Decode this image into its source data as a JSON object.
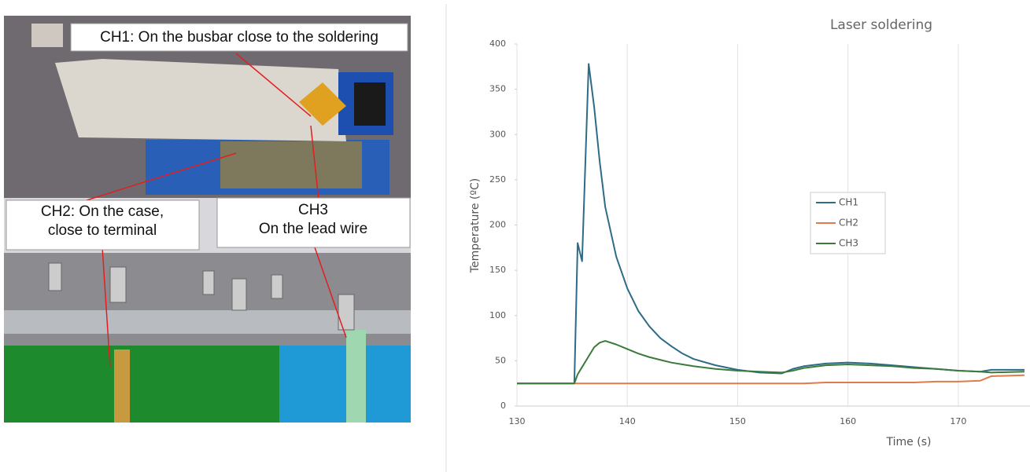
{
  "photo": {
    "labels": [
      {
        "lines": [
          "CH1: On the busbar close to the soldering"
        ]
      },
      {
        "lines": [
          "CH2: On the case,",
          "close to terminal"
        ]
      },
      {
        "lines": [
          "CH3",
          "On the lead wire"
        ]
      }
    ]
  },
  "chart_data": {
    "type": "line",
    "title": "Laser soldering",
    "x_label": "Time (s)",
    "y_label": "Temperature (ºC)",
    "x": [
      130,
      135,
      135.2,
      135.5,
      135.9,
      136.5,
      137,
      137.5,
      138,
      139,
      140,
      141,
      142,
      143,
      144,
      145,
      146,
      148,
      150,
      152,
      154,
      155,
      156,
      158,
      160,
      162,
      164,
      166,
      168,
      170,
      172,
      173,
      176
    ],
    "series": [
      {
        "name": "CH1",
        "color": "#2e6b87",
        "values": [
          25,
          25,
          25,
          180,
          160,
          378,
          330,
          270,
          220,
          165,
          130,
          105,
          88,
          75,
          66,
          58,
          52,
          45,
          40,
          37,
          36,
          41,
          44,
          47,
          48,
          47,
          45,
          43,
          41,
          39,
          38,
          40,
          40
        ]
      },
      {
        "name": "CH2",
        "color": "#e07b4a",
        "values": [
          25,
          25,
          25,
          25,
          25,
          25,
          25,
          25,
          25,
          25,
          25,
          25,
          25,
          25,
          25,
          25,
          25,
          25,
          25,
          25,
          25,
          25,
          25,
          26,
          26,
          26,
          26,
          26,
          27,
          27,
          28,
          33,
          34
        ]
      },
      {
        "name": "CH3",
        "color": "#3b7a3b",
        "values": [
          25,
          25,
          25,
          35,
          43,
          55,
          65,
          70,
          72,
          68,
          63,
          58,
          54,
          51,
          48,
          46,
          44,
          41,
          39,
          38,
          37,
          39,
          42,
          45,
          46,
          45,
          44,
          42,
          41,
          39,
          38,
          37,
          38
        ]
      }
    ],
    "xlim": [
      130,
      176.5
    ],
    "ylim": [
      0,
      400
    ],
    "xticks": [
      130,
      140,
      150,
      160,
      170
    ],
    "yticks": [
      0,
      50,
      100,
      150,
      200,
      250,
      300,
      350,
      400
    ],
    "grid": "x"
  }
}
